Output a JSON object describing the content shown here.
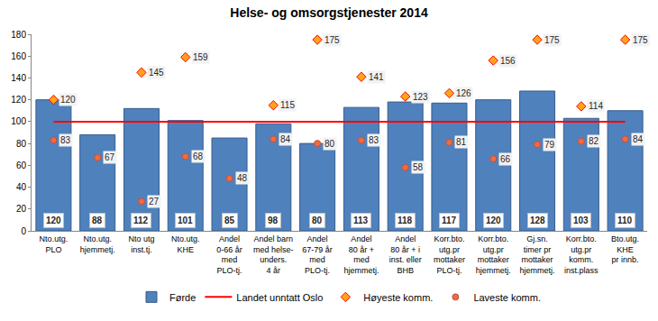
{
  "chart_data": {
    "type": "bar",
    "title": "Helse- og omsorgstjenester 2014",
    "categories": [
      "Nto.utg.\nPLO",
      "Nto.utg.\nhjemmetj.",
      "Nto utg\ninst.tj.",
      "Nto.utg.\nKHE",
      "Andel\n0-66 år\nmed\nPLO-tj.",
      "Andel barn\nmed helse-\nunders.\n4 år",
      "Andel\n67-79 år\nmed\nPLO-tj.",
      "Andel\n80 år +\nmed\nhjemmetj.",
      "Andel\n80 år + i\ninst. eller\nBHB",
      "Korr.bto.\nutg.pr\nmottaker\nPLO-tj.",
      "Korr.bto.\nutg.pr\nmottaker\nhjemmetj.",
      "Gj.sn.\ntimer pr\nmottaker\nhjemmetj.",
      "Korr.bto.\nutg.pr\nkomm.\ninst.plass",
      "Bto.utg.\nKHE\npr innb."
    ],
    "series": [
      {
        "name": "Førde",
        "type": "bar",
        "color": "#4f81bd",
        "values": [
          120,
          88,
          112,
          101,
          85,
          98,
          80,
          113,
          118,
          117,
          120,
          128,
          103,
          110
        ]
      },
      {
        "name": "Landet unntatt Oslo",
        "type": "line",
        "color": "#ff0000",
        "values": [
          100,
          100,
          100,
          100,
          100,
          100,
          100,
          100,
          100,
          100,
          100,
          100,
          100,
          100
        ]
      },
      {
        "name": "Høyeste komm.",
        "type": "scatter",
        "marker": "diamond",
        "color": "#ffa31a",
        "values": [
          120,
          null,
          145,
          159,
          null,
          115,
          175,
          141,
          123,
          126,
          156,
          175,
          114,
          175
        ]
      },
      {
        "name": "Laveste komm.",
        "type": "scatter",
        "marker": "circle",
        "color": "#f26b3a",
        "values": [
          83,
          67,
          27,
          68,
          48,
          84,
          80,
          83,
          58,
          81,
          66,
          79,
          82,
          84
        ]
      }
    ],
    "ylim": [
      0,
      180
    ],
    "yticks": [
      0,
      20,
      40,
      60,
      80,
      100,
      120,
      140,
      160,
      180
    ],
    "grid": false,
    "legend": "bottom",
    "data_labels": true
  }
}
